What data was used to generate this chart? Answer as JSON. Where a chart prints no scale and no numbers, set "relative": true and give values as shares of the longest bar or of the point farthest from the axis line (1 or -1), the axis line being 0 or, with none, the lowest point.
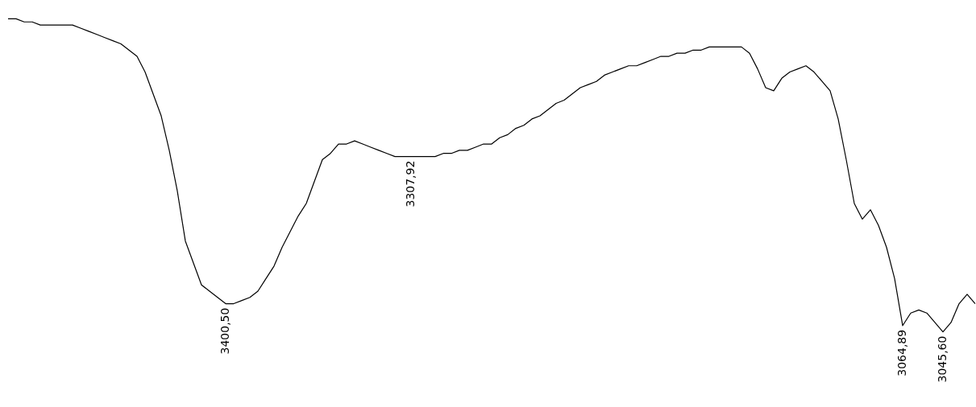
{
  "chart_data": {
    "type": "line",
    "relative": true,
    "marker": "none",
    "line_style": "solid",
    "categories": [
      null,
      null,
      null,
      null,
      null,
      null,
      null,
      null,
      null,
      null,
      null,
      null,
      null,
      null,
      null,
      null,
      null,
      null,
      null,
      null,
      null,
      null,
      null,
      null,
      null,
      null,
      null,
      "3400,50",
      null,
      null,
      null,
      null,
      null,
      null,
      null,
      null,
      null,
      null,
      null,
      null,
      null,
      null,
      null,
      null,
      null,
      null,
      null,
      null,
      null,
      null,
      "3307,92",
      null,
      null,
      null,
      null,
      null,
      null,
      null,
      null,
      null,
      null,
      null,
      null,
      null,
      null,
      null,
      null,
      null,
      null,
      null,
      null,
      null,
      null,
      null,
      null,
      null,
      null,
      null,
      null,
      null,
      null,
      null,
      null,
      null,
      null,
      null,
      null,
      null,
      null,
      null,
      null,
      null,
      null,
      null,
      null,
      null,
      null,
      null,
      null,
      null,
      null,
      null,
      null,
      null,
      null,
      null,
      null,
      null,
      null,
      null,
      null,
      "3064,89",
      null,
      null,
      null,
      null,
      "3045,60",
      null,
      null,
      null,
      null
    ],
    "series": [
      {
        "color": "#000000",
        "values": [
          1.0,
          1.0,
          0.99,
          0.99,
          0.98,
          0.98,
          0.98,
          0.98,
          0.98,
          0.97,
          0.96,
          0.95,
          0.94,
          0.93,
          0.92,
          0.9,
          0.88,
          0.83,
          0.76,
          0.69,
          0.58,
          0.45,
          0.29,
          0.22,
          0.15,
          0.13,
          0.11,
          0.09,
          0.09,
          0.1,
          0.11,
          0.13,
          0.17,
          0.21,
          0.27,
          0.32,
          0.37,
          0.41,
          0.48,
          0.55,
          0.57,
          0.6,
          0.6,
          0.61,
          0.6,
          0.59,
          0.58,
          0.57,
          0.56,
          0.56,
          0.56,
          0.56,
          0.56,
          0.56,
          0.57,
          0.57,
          0.58,
          0.58,
          0.59,
          0.6,
          0.6,
          0.62,
          0.63,
          0.65,
          0.66,
          0.68,
          0.69,
          0.71,
          0.73,
          0.74,
          0.76,
          0.78,
          0.79,
          0.8,
          0.82,
          0.83,
          0.84,
          0.85,
          0.85,
          0.86,
          0.87,
          0.88,
          0.88,
          0.89,
          0.89,
          0.9,
          0.9,
          0.91,
          0.91,
          0.91,
          0.91,
          0.91,
          0.89,
          0.84,
          0.78,
          0.77,
          0.81,
          0.83,
          0.84,
          0.85,
          0.83,
          0.8,
          0.77,
          0.68,
          0.55,
          0.41,
          0.36,
          0.39,
          0.34,
          0.27,
          0.17,
          0.02,
          0.06,
          0.07,
          0.06,
          0.03,
          0.0,
          0.03,
          0.09,
          0.12,
          0.09
        ]
      }
    ]
  }
}
